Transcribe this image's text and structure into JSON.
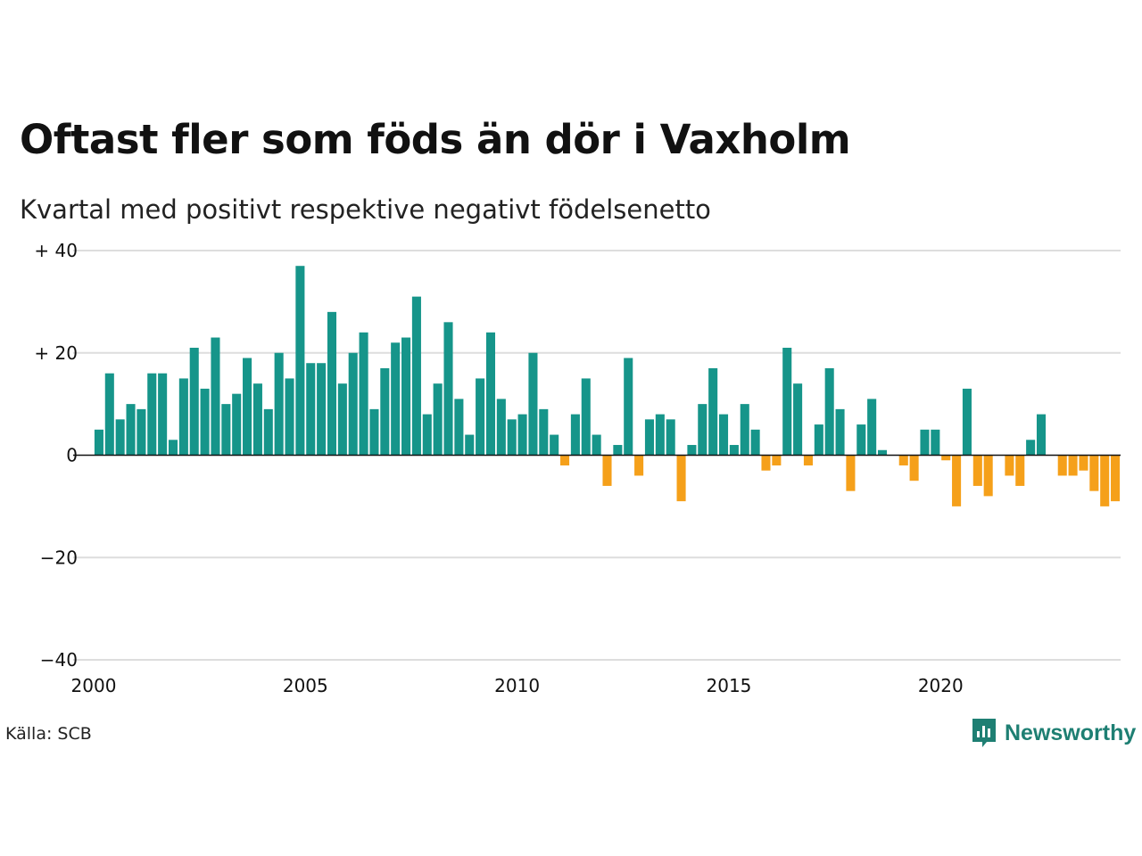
{
  "title": "Oftast fler som föds än dör i Vaxholm",
  "subtitle": "Kvartal med positivt respektive negativt födelsenetto",
  "source": "Källa: SCB",
  "brand": "Newsworthy",
  "colors": {
    "positive": "#16958a",
    "negative": "#f5a01a",
    "grid": "#dddddd",
    "zero_line": "#111111",
    "brand": "#1e7f73"
  },
  "chart_data": {
    "type": "bar",
    "x_start": 2000,
    "x_step": 0.25,
    "xlim": [
      2000,
      2024.25
    ],
    "x_ticks": [
      2000,
      2005,
      2010,
      2015,
      2020
    ],
    "x_tick_labels": [
      "2000",
      "2005",
      "2010",
      "2015",
      "2020"
    ],
    "ylim": [
      -40,
      40
    ],
    "y_ticks": [
      40,
      20,
      0,
      -20,
      -40
    ],
    "y_tick_labels": [
      "+ 40",
      "+ 20",
      "0",
      "−20",
      "−40"
    ],
    "grid": true,
    "values": [
      5,
      16,
      7,
      10,
      9,
      16,
      16,
      3,
      15,
      21,
      13,
      23,
      10,
      12,
      19,
      14,
      9,
      20,
      15,
      37,
      18,
      18,
      28,
      14,
      20,
      24,
      9,
      17,
      22,
      23,
      31,
      8,
      14,
      26,
      11,
      4,
      15,
      24,
      11,
      7,
      8,
      20,
      9,
      4,
      -2,
      8,
      15,
      4,
      -6,
      2,
      19,
      -4,
      7,
      8,
      7,
      -9,
      2,
      10,
      17,
      8,
      2,
      10,
      5,
      -3,
      -2,
      21,
      14,
      -2,
      6,
      17,
      9,
      -7,
      6,
      11,
      1,
      0,
      -2,
      -5,
      5,
      5,
      -1,
      -10,
      13,
      -6,
      -8,
      0,
      -4,
      -6,
      3,
      8,
      0,
      -4,
      -4,
      -3,
      -7,
      -10,
      -9
    ]
  }
}
